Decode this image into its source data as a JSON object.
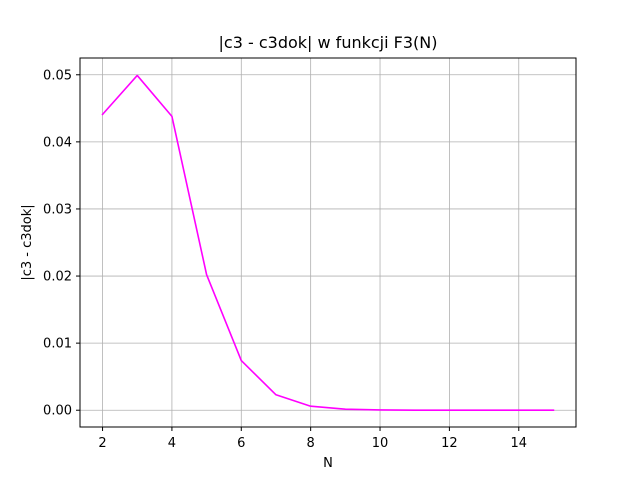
{
  "chart_data": {
    "type": "line",
    "title": "|c3 - c3dok| w funkcji F3(N)",
    "xlabel": "N",
    "ylabel": "|c3 - c3dok|",
    "xlim": [
      1.35,
      15.65
    ],
    "ylim": [
      -0.0025,
      0.0525
    ],
    "xticks": [
      2,
      4,
      6,
      8,
      10,
      12,
      14
    ],
    "yticks": [
      0.0,
      0.01,
      0.02,
      0.03,
      0.04,
      0.05
    ],
    "ytick_labels": [
      "0.00",
      "0.01",
      "0.02",
      "0.03",
      "0.04",
      "0.05"
    ],
    "grid": true,
    "series": [
      {
        "color": "#ff00ff",
        "x": [
          2,
          3,
          4,
          5,
          6,
          7,
          8,
          9,
          10,
          11,
          12,
          13,
          14,
          15
        ],
        "y": [
          0.0441,
          0.0499,
          0.0438,
          0.0202,
          0.0074,
          0.0023,
          0.0006,
          0.00015,
          4e-05,
          1e-05,
          0.0,
          0.0,
          0.0,
          0.0
        ]
      }
    ]
  }
}
